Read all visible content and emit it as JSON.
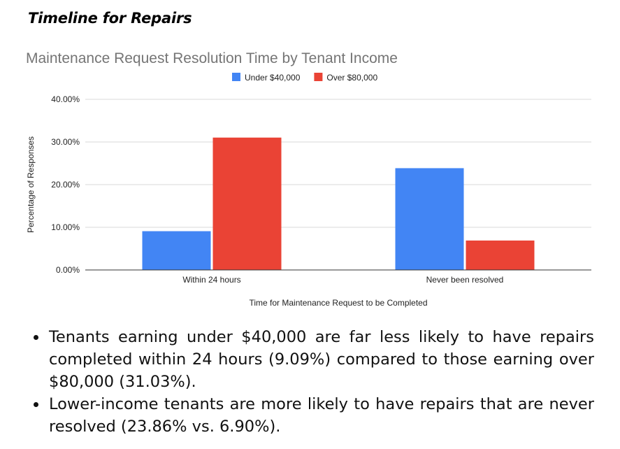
{
  "header": {
    "title": "Timeline for Repairs"
  },
  "chart_data": {
    "type": "bar",
    "title": "Maintenance Request Resolution Time by Tenant Income",
    "xlabel": "Time for Maintenance Request to be Completed",
    "ylabel": "Percentage of Responses",
    "categories": [
      "Within 24 hours",
      "Never been resolved"
    ],
    "series": [
      {
        "name": "Under $40,000",
        "values": [
          9.09,
          23.86
        ],
        "color": "#4285f4"
      },
      {
        "name": "Over $80,000",
        "values": [
          31.03,
          6.9
        ],
        "color": "#ea4335"
      }
    ],
    "ylim": [
      0,
      40
    ],
    "yticks": [
      0,
      10,
      20,
      30,
      40
    ],
    "ytick_labels": [
      "0.00%",
      "10.00%",
      "20.00%",
      "30.00%",
      "40.00%"
    ],
    "legend": "top",
    "grid": true
  },
  "bullets": [
    "Tenants earning under $40,000 are far less likely to have repairs completed within 24 hours (9.09%) compared to those earning over $80,000 (31.03%).",
    "Lower-income tenants are more likely to have repairs that are never resolved (23.86% vs. 6.90%)."
  ]
}
